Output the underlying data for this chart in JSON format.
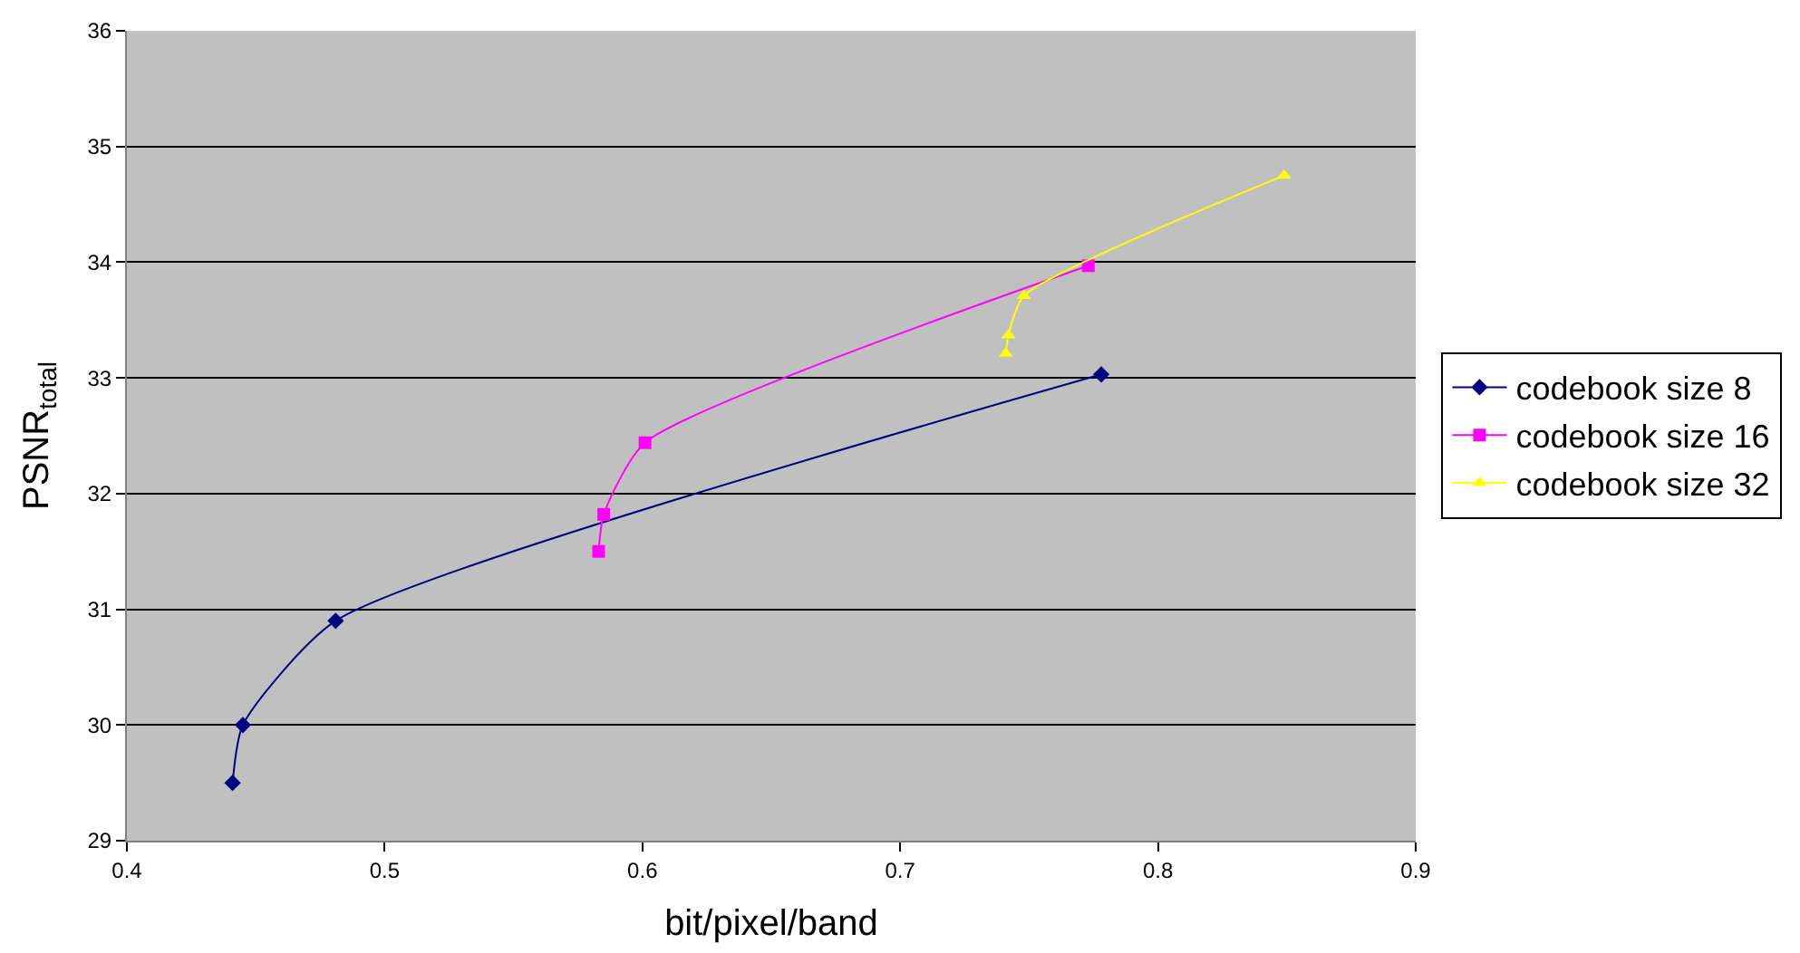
{
  "chart_data": {
    "type": "line",
    "xlabel": "bit/pixel/band",
    "ylabel": "PSNR$_{total}$",
    "xlim": [
      0.4,
      0.9
    ],
    "xticks": [
      0.4,
      0.5,
      0.6,
      0.7,
      0.8,
      0.9
    ],
    "ylim": [
      29,
      36
    ],
    "yticks": [
      29,
      30,
      31,
      32,
      33,
      34,
      35,
      36
    ],
    "grid": "y",
    "legend": "right",
    "series": [
      {
        "name": "codebook size 8",
        "color": "#000080",
        "marker": "diamond",
        "x": [
          0.441,
          0.445,
          0.481,
          0.778
        ],
        "values": [
          29.5,
          30.0,
          30.9,
          33.03
        ]
      },
      {
        "name": "codebook size 16",
        "color": "#ff00ff",
        "marker": "square",
        "x": [
          0.583,
          0.585,
          0.601,
          0.773
        ],
        "values": [
          31.5,
          31.82,
          32.44,
          33.97
        ]
      },
      {
        "name": "codebook size 32",
        "color": "#ffff00",
        "marker": "triangle",
        "x": [
          0.741,
          0.742,
          0.748,
          0.849
        ],
        "values": [
          33.21,
          33.37,
          33.71,
          34.75
        ]
      }
    ]
  }
}
